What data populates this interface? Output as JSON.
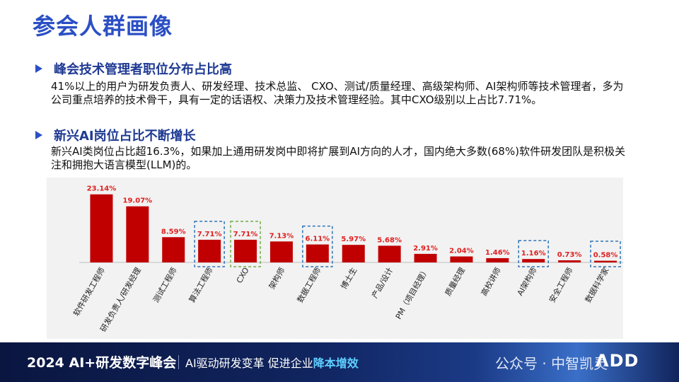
{
  "page_title": "参会人群画像",
  "sections": [
    {
      "heading": "峰会技术管理者职位分布占比高",
      "text": "41%以上的用户为研发负责人、研发经理、技术总监、 CXO、测试/质量经理、高级架构师、AI架构师等技术管理者，多为公司重点培养的技术骨干，具有一定的话语权、决策力及技术管理经验。其中CXO级别以上占比7.71%。"
    },
    {
      "heading": "新兴AI岗位占比不断增长",
      "text": "新兴AI类岗位占比超16.3%，如果加上通用研发岗中即将扩展到AI方向的人才，国内绝大多数(68%)软件研发团队是积极关注和拥抱大语言模型(LLM)的。"
    }
  ],
  "chart_data": {
    "type": "bar",
    "categories": [
      "软件研发工程师",
      "研发负责人/研发经理",
      "测试工程师",
      "算法工程师",
      "CXO",
      "架构师",
      "数据工程师",
      "博士生",
      "产品/设计",
      "PM（项目经理）",
      "质量经理",
      "高校讲师",
      "AI架构师",
      "安全工程师",
      "数据科学家"
    ],
    "values": [
      23.14,
      19.07,
      8.59,
      7.71,
      7.71,
      7.13,
      6.11,
      5.97,
      5.68,
      2.91,
      2.04,
      1.46,
      1.16,
      0.73,
      0.58
    ],
    "data_labels": [
      "23.14%",
      "19.07%",
      "8.59%",
      "7.71%",
      "7.71%",
      "7.13%",
      "6.11%",
      "5.97%",
      "5.68%",
      "2.91%",
      "2.04%",
      "1.46%",
      "1.16%",
      "0.73%",
      "0.58%"
    ],
    "highlighted_blue": [
      "算法工程师",
      "数据工程师",
      "AI架构师",
      "数据科学家"
    ],
    "highlighted_green": [
      "CXO"
    ],
    "bar_color": "#c00000",
    "label_color": "#e02020",
    "ylim": [
      0,
      25
    ]
  },
  "footer": {
    "event": "2024 AI+研发数字峰会",
    "slogan_a": "AI驱动研发变革  促进企业",
    "slogan_b": "降本增效",
    "watermark": "公众号 · 中智凯灵",
    "logo": "ΛDD"
  }
}
